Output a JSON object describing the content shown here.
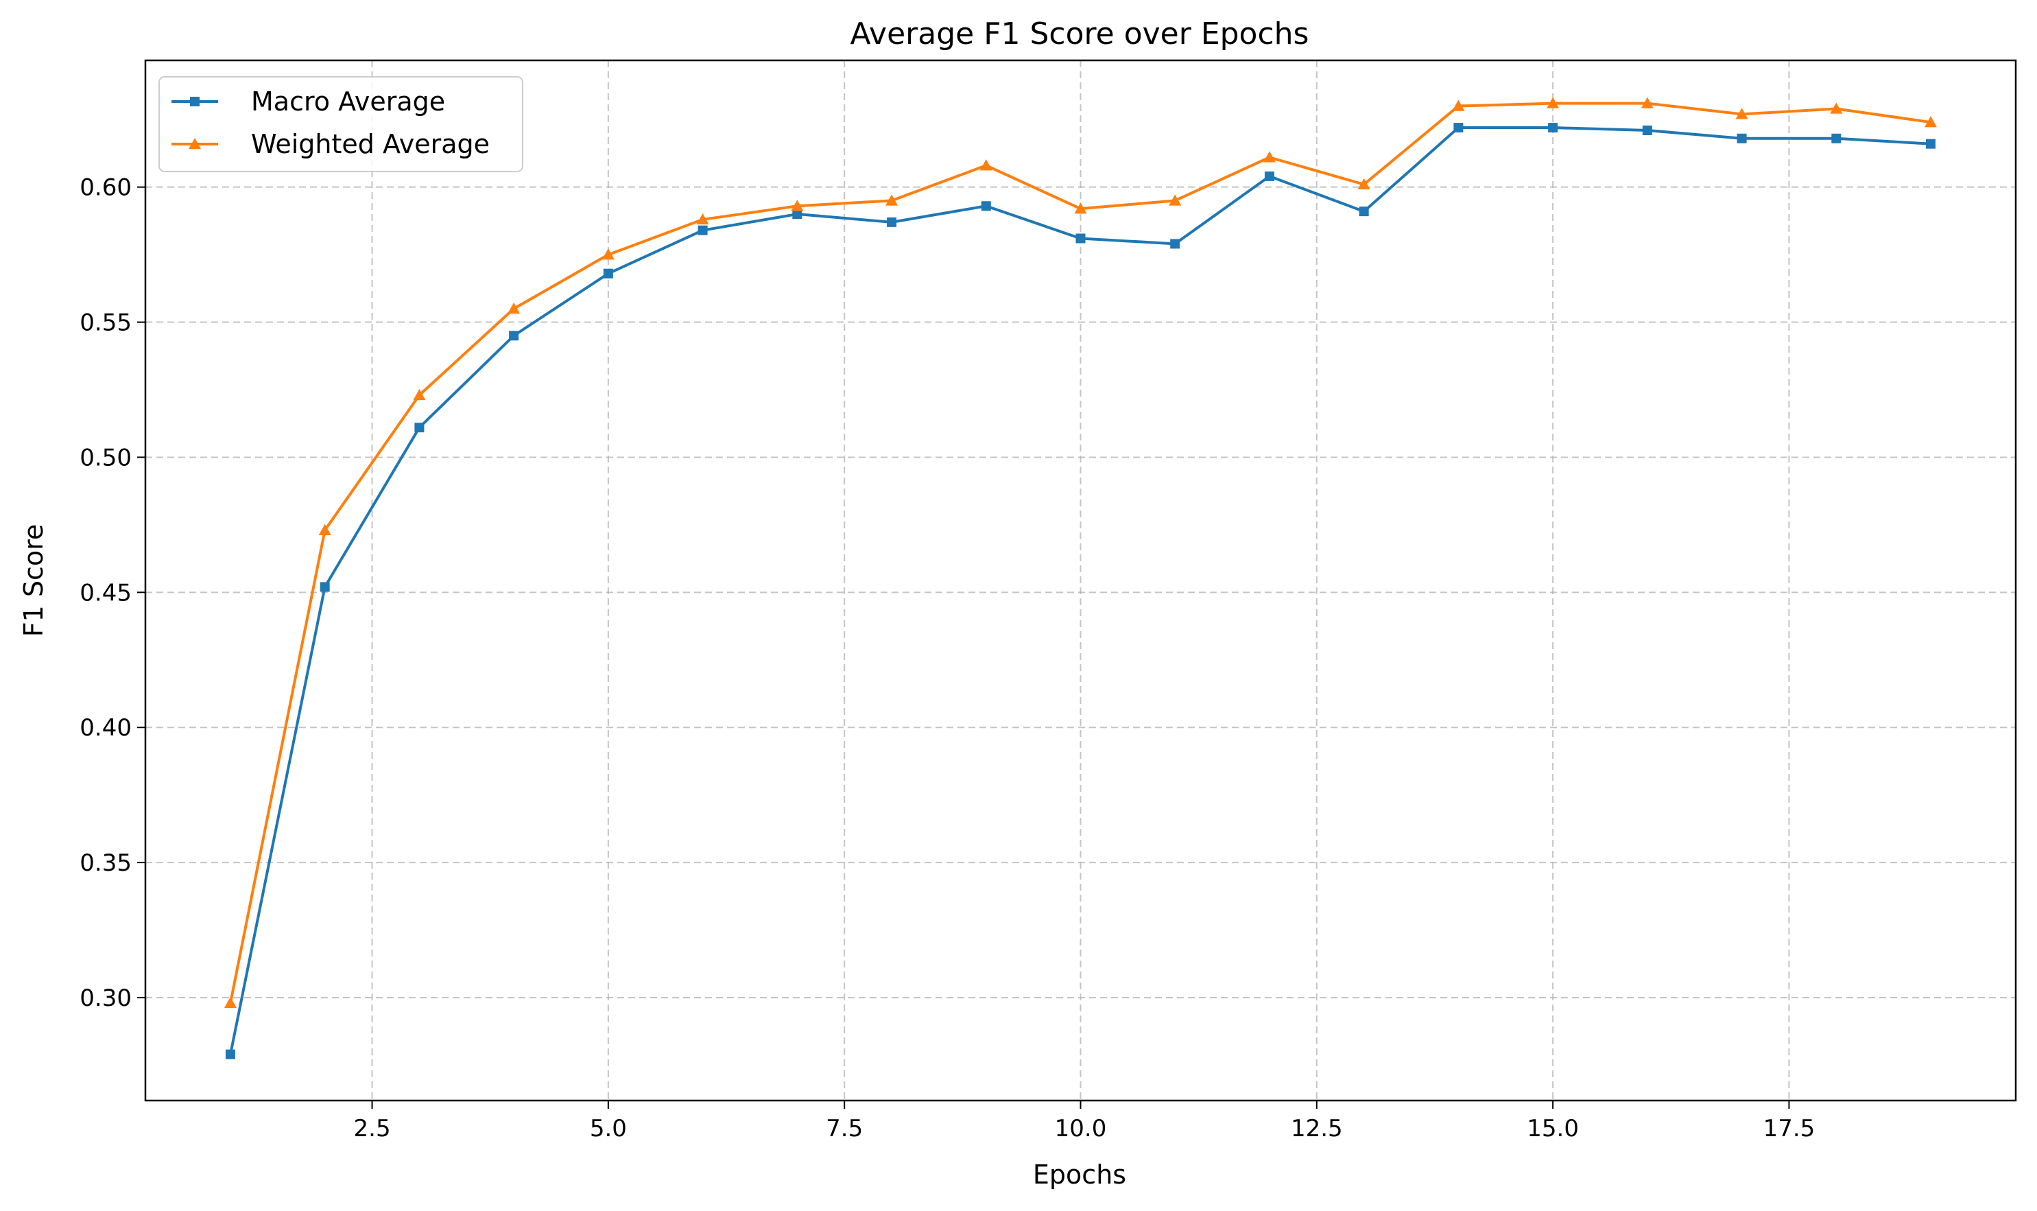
{
  "chart_data": {
    "type": "line",
    "title": "Average F1 Score over Epochs",
    "xlabel": "Epochs",
    "ylabel": "F1 Score",
    "xlim": [
      0.1,
      19.9
    ],
    "ylim": [
      0.2619,
      0.6469
    ],
    "xticks": [
      2.5,
      5.0,
      7.5,
      10.0,
      12.5,
      15.0,
      17.5
    ],
    "xtick_labels": [
      "2.5",
      "5.0",
      "7.5",
      "10.0",
      "12.5",
      "15.0",
      "17.5"
    ],
    "yticks": [
      0.3,
      0.35,
      0.4,
      0.45,
      0.5,
      0.55,
      0.6
    ],
    "ytick_labels": [
      "0.30",
      "0.35",
      "0.40",
      "0.45",
      "0.50",
      "0.55",
      "0.60"
    ],
    "grid": true,
    "legend_position": "top-left",
    "x": [
      1,
      2,
      3,
      4,
      5,
      6,
      7,
      8,
      9,
      10,
      11,
      12,
      13,
      14,
      15,
      16,
      17,
      18,
      19
    ],
    "series": [
      {
        "name": "Macro Average",
        "color": "#1f77b4",
        "marker": "square",
        "values": [
          0.279,
          0.452,
          0.511,
          0.545,
          0.568,
          0.584,
          0.59,
          0.587,
          0.593,
          0.581,
          0.579,
          0.604,
          0.591,
          0.622,
          0.622,
          0.621,
          0.618,
          0.618,
          0.616
        ]
      },
      {
        "name": "Weighted Average",
        "color": "#ff7f0e",
        "marker": "triangle",
        "values": [
          0.298,
          0.473,
          0.523,
          0.555,
          0.575,
          0.588,
          0.593,
          0.595,
          0.608,
          0.592,
          0.595,
          0.611,
          0.601,
          0.63,
          0.631,
          0.631,
          0.627,
          0.629,
          0.624
        ]
      }
    ]
  }
}
